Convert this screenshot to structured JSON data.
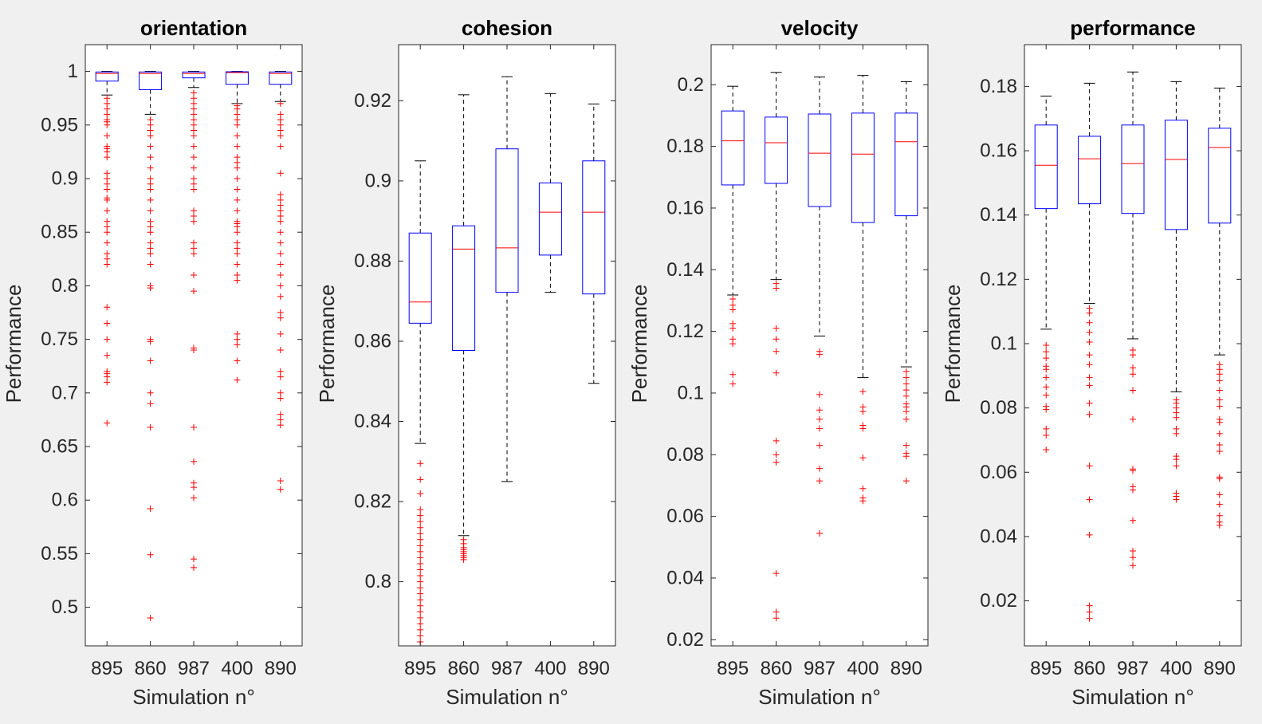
{
  "figure": {
    "background": "#f0f0f0",
    "box_color": "#0000ff",
    "median_color": "#ff0000",
    "outlier_color": "#ff0000",
    "whisker_color": "#000000"
  },
  "chart_data": [
    {
      "type": "box",
      "title": "orientation",
      "xlabel": "Simulation n°",
      "ylabel": "Performance",
      "categories": [
        "895",
        "860",
        "987",
        "400",
        "890"
      ],
      "ylim": [
        0.464,
        1.025
      ],
      "yticks": [
        0.5,
        0.55,
        0.6,
        0.65,
        0.7,
        0.75,
        0.8,
        0.85,
        0.9,
        0.95,
        1
      ],
      "ytick_labels": [
        "0.5",
        "0.55",
        "0.6",
        "0.65",
        "0.7",
        "0.75",
        "0.8",
        "0.85",
        "0.9",
        "0.95",
        "1"
      ],
      "grid": false,
      "boxes": [
        {
          "q1": 0.991,
          "median": 0.998,
          "q3": 0.9995,
          "whisker_low": 0.978,
          "whisker_high": 1.0,
          "outliers": [
            0.975,
            0.97,
            0.965,
            0.96,
            0.955,
            0.953,
            0.95,
            0.94,
            0.93,
            0.928,
            0.925,
            0.92,
            0.905,
            0.9,
            0.895,
            0.89,
            0.882,
            0.88,
            0.87,
            0.86,
            0.855,
            0.85,
            0.84,
            0.83,
            0.825,
            0.82,
            0.78,
            0.765,
            0.75,
            0.735,
            0.72,
            0.718,
            0.715,
            0.71,
            0.672
          ]
        },
        {
          "q1": 0.983,
          "median": 0.998,
          "q3": 0.9995,
          "whisker_low": 0.96,
          "whisker_high": 1.0,
          "outliers": [
            0.955,
            0.95,
            0.945,
            0.94,
            0.93,
            0.92,
            0.91,
            0.9,
            0.895,
            0.89,
            0.88,
            0.87,
            0.86,
            0.855,
            0.85,
            0.84,
            0.835,
            0.83,
            0.82,
            0.8,
            0.798,
            0.75,
            0.748,
            0.73,
            0.7,
            0.69,
            0.668,
            0.592,
            0.549,
            0.49
          ]
        },
        {
          "q1": 0.994,
          "median": 0.998,
          "q3": 0.9995,
          "whisker_low": 0.985,
          "whisker_high": 1.0,
          "outliers": [
            0.98,
            0.975,
            0.97,
            0.965,
            0.96,
            0.955,
            0.95,
            0.945,
            0.94,
            0.93,
            0.92,
            0.91,
            0.9,
            0.895,
            0.89,
            0.87,
            0.865,
            0.86,
            0.84,
            0.835,
            0.83,
            0.81,
            0.795,
            0.742,
            0.74,
            0.668,
            0.636,
            0.616,
            0.612,
            0.602,
            0.545,
            0.537
          ]
        },
        {
          "q1": 0.988,
          "median": 0.999,
          "q3": 0.9997,
          "whisker_low": 0.97,
          "whisker_high": 1.0,
          "outliers": [
            0.968,
            0.965,
            0.96,
            0.955,
            0.95,
            0.94,
            0.93,
            0.92,
            0.915,
            0.91,
            0.9,
            0.89,
            0.88,
            0.87,
            0.86,
            0.858,
            0.855,
            0.85,
            0.84,
            0.835,
            0.83,
            0.82,
            0.81,
            0.805,
            0.755,
            0.75,
            0.745,
            0.73,
            0.712
          ]
        },
        {
          "q1": 0.988,
          "median": 0.998,
          "q3": 0.9995,
          "whisker_low": 0.972,
          "whisker_high": 1.0,
          "outliers": [
            0.97,
            0.96,
            0.955,
            0.95,
            0.945,
            0.94,
            0.93,
            0.905,
            0.885,
            0.88,
            0.875,
            0.87,
            0.865,
            0.86,
            0.85,
            0.84,
            0.83,
            0.82,
            0.81,
            0.8,
            0.79,
            0.775,
            0.77,
            0.755,
            0.74,
            0.72,
            0.715,
            0.7,
            0.695,
            0.68,
            0.675,
            0.67,
            0.618,
            0.61
          ]
        }
      ]
    },
    {
      "type": "box",
      "title": "cohesion",
      "xlabel": "Simulation n°",
      "ylabel": "Performance",
      "categories": [
        "895",
        "860",
        "987",
        "400",
        "890"
      ],
      "ylim": [
        0.784,
        0.934
      ],
      "yticks": [
        0.8,
        0.82,
        0.84,
        0.86,
        0.88,
        0.9,
        0.92
      ],
      "ytick_labels": [
        "0.8",
        "0.82",
        "0.84",
        "0.86",
        "0.88",
        "0.9",
        "0.92"
      ],
      "grid": false,
      "boxes": [
        {
          "q1": 0.8645,
          "median": 0.8698,
          "q3": 0.887,
          "whisker_low": 0.8345,
          "whisker_high": 0.905,
          "outliers": [
            0.8295,
            0.8255,
            0.822,
            0.818,
            0.8165,
            0.815,
            0.8135,
            0.812,
            0.8105,
            0.809,
            0.8075,
            0.806,
            0.8045,
            0.803,
            0.8015,
            0.8,
            0.7985,
            0.797,
            0.7955,
            0.794,
            0.7925,
            0.791,
            0.7895,
            0.788,
            0.7865,
            0.785
          ]
        },
        {
          "q1": 0.8577,
          "median": 0.883,
          "q3": 0.8888,
          "whisker_low": 0.8115,
          "whisker_high": 0.9215,
          "outliers": [
            0.8105,
            0.8095,
            0.8085,
            0.808,
            0.8075,
            0.807,
            0.8065,
            0.806,
            0.8055
          ]
        },
        {
          "q1": 0.8722,
          "median": 0.8833,
          "q3": 0.908,
          "whisker_low": 0.825,
          "whisker_high": 0.926,
          "outliers": []
        },
        {
          "q1": 0.8815,
          "median": 0.8922,
          "q3": 0.8995,
          "whisker_low": 0.8722,
          "whisker_high": 0.9218,
          "outliers": []
        },
        {
          "q1": 0.8718,
          "median": 0.8922,
          "q3": 0.905,
          "whisker_low": 0.8495,
          "whisker_high": 0.9192,
          "outliers": []
        }
      ]
    },
    {
      "type": "box",
      "title": "velocity",
      "xlabel": "Simulation n°",
      "ylabel": "Performance",
      "categories": [
        "895",
        "860",
        "987",
        "400",
        "890"
      ],
      "ylim": [
        0.018,
        0.213
      ],
      "yticks": [
        0.02,
        0.04,
        0.06,
        0.08,
        0.1,
        0.12,
        0.14,
        0.16,
        0.18,
        0.2
      ],
      "ytick_labels": [
        "0.02",
        "0.04",
        "0.06",
        "0.08",
        "0.1",
        "0.12",
        "0.14",
        "0.16",
        "0.18",
        "0.2"
      ],
      "grid": false,
      "boxes": [
        {
          "q1": 0.1675,
          "median": 0.1818,
          "q3": 0.1915,
          "whisker_low": 0.1318,
          "whisker_high": 0.1995,
          "outliers": [
            0.1305,
            0.1285,
            0.127,
            0.1225,
            0.121,
            0.1175,
            0.116,
            0.106,
            0.103
          ]
        },
        {
          "q1": 0.168,
          "median": 0.1812,
          "q3": 0.1895,
          "whisker_low": 0.1368,
          "whisker_high": 0.204,
          "outliers": [
            0.1355,
            0.134,
            0.121,
            0.1175,
            0.1135,
            0.1065,
            0.0845,
            0.08,
            0.0775,
            0.0415,
            0.029,
            0.027
          ]
        },
        {
          "q1": 0.1605,
          "median": 0.1778,
          "q3": 0.1905,
          "whisker_low": 0.1185,
          "whisker_high": 0.2025,
          "outliers": [
            0.1135,
            0.1125,
            0.0995,
            0.0945,
            0.0915,
            0.0885,
            0.083,
            0.0755,
            0.0715,
            0.0545
          ]
        },
        {
          "q1": 0.1553,
          "median": 0.1775,
          "q3": 0.1908,
          "whisker_low": 0.105,
          "whisker_high": 0.203,
          "outliers": [
            0.1005,
            0.0955,
            0.094,
            0.0895,
            0.0885,
            0.079,
            0.069,
            0.066,
            0.065
          ]
        },
        {
          "q1": 0.1575,
          "median": 0.1815,
          "q3": 0.1908,
          "whisker_low": 0.1085,
          "whisker_high": 0.201,
          "outliers": [
            0.107,
            0.105,
            0.103,
            0.101,
            0.099,
            0.0965,
            0.0955,
            0.094,
            0.0915,
            0.083,
            0.0805,
            0.0795,
            0.0715
          ]
        }
      ]
    },
    {
      "type": "box",
      "title": "performance",
      "xlabel": "Simulation n°",
      "ylabel": "Performance",
      "categories": [
        "895",
        "860",
        "987",
        "400",
        "890"
      ],
      "ylim": [
        0.006,
        0.193
      ],
      "yticks": [
        0.02,
        0.04,
        0.06,
        0.08,
        0.1,
        0.12,
        0.14,
        0.16,
        0.18
      ],
      "ytick_labels": [
        "0.02",
        "0.04",
        "0.06",
        "0.08",
        "0.1",
        "0.12",
        "0.14",
        "0.16",
        "0.18"
      ],
      "grid": false,
      "boxes": [
        {
          "q1": 0.142,
          "median": 0.1555,
          "q3": 0.168,
          "whisker_low": 0.1045,
          "whisker_high": 0.177,
          "outliers": [
            0.0995,
            0.0975,
            0.0955,
            0.093,
            0.092,
            0.0895,
            0.0865,
            0.084,
            0.0805,
            0.0795,
            0.0735,
            0.0715,
            0.067
          ]
        },
        {
          "q1": 0.1435,
          "median": 0.1575,
          "q3": 0.1645,
          "whisker_low": 0.1125,
          "whisker_high": 0.181,
          "outliers": [
            0.111,
            0.1095,
            0.1065,
            0.1035,
            0.1005,
            0.0965,
            0.0935,
            0.0895,
            0.087,
            0.0815,
            0.078,
            0.062,
            0.0515,
            0.0405,
            0.0185,
            0.0165,
            0.0145
          ]
        },
        {
          "q1": 0.1405,
          "median": 0.156,
          "q3": 0.168,
          "whisker_low": 0.1015,
          "whisker_high": 0.1845,
          "outliers": [
            0.098,
            0.0965,
            0.0925,
            0.0905,
            0.0855,
            0.0765,
            0.061,
            0.0605,
            0.0555,
            0.0545,
            0.045,
            0.0355,
            0.0335,
            0.031
          ]
        },
        {
          "q1": 0.1355,
          "median": 0.1573,
          "q3": 0.1695,
          "whisker_low": 0.085,
          "whisker_high": 0.1815,
          "outliers": [
            0.0825,
            0.0815,
            0.08,
            0.0785,
            0.077,
            0.0735,
            0.072,
            0.065,
            0.064,
            0.062,
            0.0535,
            0.0525,
            0.0515
          ]
        },
        {
          "q1": 0.1375,
          "median": 0.161,
          "q3": 0.167,
          "whisker_low": 0.0965,
          "whisker_high": 0.1795,
          "outliers": [
            0.0935,
            0.092,
            0.0905,
            0.0885,
            0.0855,
            0.0825,
            0.0805,
            0.0765,
            0.0755,
            0.072,
            0.0685,
            0.0665,
            0.0585,
            0.058,
            0.053,
            0.05,
            0.0465,
            0.0445,
            0.0435
          ]
        }
      ]
    }
  ]
}
